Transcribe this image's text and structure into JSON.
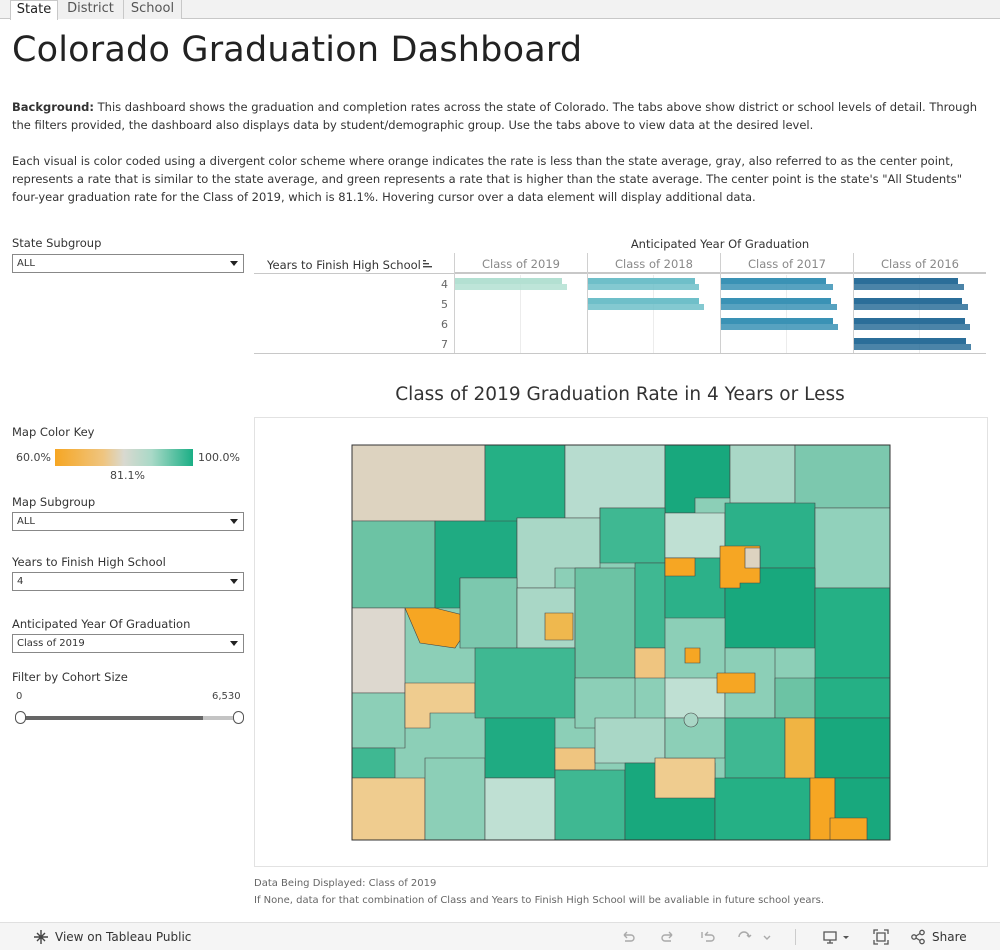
{
  "tabs": [
    {
      "label": "State"
    },
    {
      "label": "District"
    },
    {
      "label": "School"
    }
  ],
  "page_title": "Colorado Graduation Dashboard",
  "background": {
    "lead": "Background:",
    "text": " This dashboard shows the graduation and completion rates across the state of Colorado. The tabs above show district or school levels of detail. Through the filters provided, the dashboard also displays data by student/demographic group. Use the tabs above to view data at the desired level."
  },
  "color_explanation": "Each visual is color coded using a divergent color scheme where orange indicates the rate is less than the state average, gray, also referred to as the center point, represents a rate that is similar to the state average, and green represents a rate that is higher than the state average. The center point is the state's \"All Students\" four-year graduation rate for the Class of 2019, which is 81.1%. Hovering cursor over a data element will display additional data.",
  "filters": {
    "state_subgroup": {
      "label": "State Subgroup",
      "value": "ALL"
    },
    "map_subgroup": {
      "label": "Map Subgroup",
      "value": "ALL"
    },
    "years_to_finish": {
      "label": "Years to Finish High School",
      "value": "4"
    },
    "anticipated_year": {
      "label": "Anticipated Year Of Graduation",
      "value": "Class of 2019"
    },
    "cohort_size": {
      "label": "Filter by Cohort Size",
      "min": "0",
      "max": "6,530",
      "low_fraction": 0.0,
      "high_fraction": 1.0
    }
  },
  "map_color_key": {
    "label": "Map Color Key",
    "min": "60.0%",
    "max": "100.0%",
    "center": "81.1%",
    "colors": {
      "low": "#f6a623",
      "center": "#d9d9d0",
      "high": "#1aae85"
    }
  },
  "bar_table": {
    "column_group_title": "Anticipated Year Of Graduation",
    "row_header": "Years to Finish High School",
    "columns": [
      "Class of 2019",
      "Class of 2018",
      "Class of 2017",
      "Class of 2016"
    ],
    "rows": [
      "4",
      "5",
      "6",
      "7"
    ],
    "column_colors": [
      "#b3e0d2",
      "#6fbfc9",
      "#3a92b5",
      "#2b6e99"
    ]
  },
  "chart_data": {
    "type": "bar",
    "orientation": "horizontal",
    "x_range": [
      0,
      100
    ],
    "columns": [
      "Class of 2019",
      "Class of 2018",
      "Class of 2017",
      "Class of 2016"
    ],
    "rows": [
      "4",
      "5",
      "6",
      "7"
    ],
    "cells": [
      {
        "column": "Class of 2019",
        "row": "4",
        "values": [
          81.1,
          85
        ]
      },
      {
        "column": "Class of 2018",
        "row": "4",
        "values": [
          80.7,
          84
        ]
      },
      {
        "column": "Class of 2018",
        "row": "5",
        "values": [
          84.3,
          88
        ]
      },
      {
        "column": "Class of 2017",
        "row": "4",
        "values": [
          79.8,
          85
        ]
      },
      {
        "column": "Class of 2017",
        "row": "5",
        "values": [
          83.2,
          88
        ]
      },
      {
        "column": "Class of 2017",
        "row": "6",
        "values": [
          84.8,
          89
        ]
      },
      {
        "column": "Class of 2016",
        "row": "4",
        "values": [
          78.9,
          83
        ]
      },
      {
        "column": "Class of 2016",
        "row": "5",
        "values": [
          82.1,
          86
        ]
      },
      {
        "column": "Class of 2016",
        "row": "6",
        "values": [
          84.0,
          88
        ]
      },
      {
        "column": "Class of 2016",
        "row": "7",
        "values": [
          84.9,
          89
        ]
      }
    ]
  },
  "map": {
    "title": "Class of 2019 Graduation Rate in 4 Years or Less"
  },
  "footnotes": {
    "line1": "Data Being Displayed: Class of 2019",
    "line2": "If None, data for that combination of Class and Years to Finish High School will be avaliable in future school years."
  },
  "toolbar": {
    "view_label": "View on Tableau Public",
    "share_label": "Share"
  }
}
